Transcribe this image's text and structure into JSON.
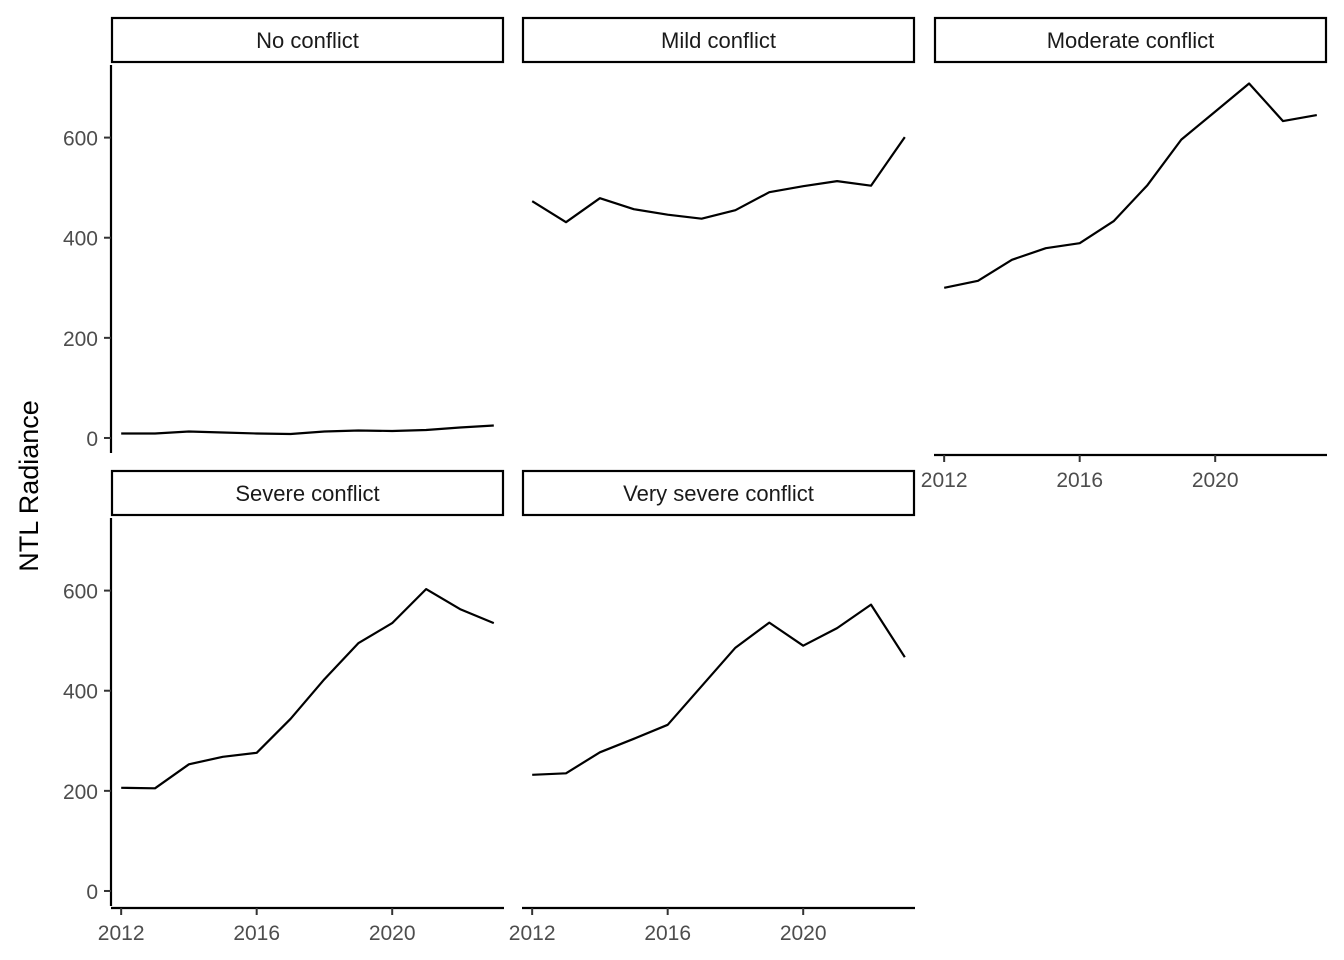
{
  "chart_data": {
    "type": "line",
    "facet_layout": "3 columns, 2 rows",
    "ylabel": "NTL Radiance",
    "xlabel": "",
    "xlim": [
      2011.7,
      2023.3
    ],
    "ylim": [
      -30,
      745
    ],
    "x_ticks": [
      2012,
      2016,
      2020
    ],
    "y_ticks": [
      0,
      200,
      400,
      600
    ],
    "line_color": "#000000",
    "grid": false,
    "panels": [
      {
        "title": "No conflict",
        "x": [
          2012,
          2013,
          2014,
          2015,
          2016,
          2017,
          2018,
          2019,
          2020,
          2021,
          2022,
          2023
        ],
        "values": [
          9,
          9,
          13,
          11,
          9,
          8,
          13,
          15,
          14,
          16,
          21,
          25
        ]
      },
      {
        "title": "Mild conflict",
        "x": [
          2012,
          2013,
          2014,
          2015,
          2016,
          2017,
          2018,
          2019,
          2020,
          2021,
          2022,
          2023
        ],
        "values": [
          473,
          431,
          479,
          457,
          446,
          438,
          455,
          491,
          503,
          513,
          504,
          601
        ]
      },
      {
        "title": "Moderate conflict",
        "x": [
          2012,
          2013,
          2014,
          2015,
          2016,
          2017,
          2018,
          2019,
          2020,
          2021,
          2022,
          2023
        ],
        "values": [
          300,
          314,
          356,
          379,
          389,
          433,
          505,
          596,
          652,
          708,
          633,
          645
        ]
      },
      {
        "title": "Severe conflict",
        "x": [
          2012,
          2013,
          2014,
          2015,
          2016,
          2017,
          2018,
          2019,
          2020,
          2021,
          2022,
          2023
        ],
        "values": [
          206,
          205,
          253,
          268,
          276,
          344,
          423,
          495,
          535,
          603,
          563,
          535
        ]
      },
      {
        "title": "Very severe conflict",
        "x": [
          2012,
          2013,
          2014,
          2015,
          2016,
          2017,
          2018,
          2019,
          2020,
          2021,
          2022,
          2023
        ],
        "values": [
          232,
          235,
          277,
          304,
          332,
          409,
          486,
          536,
          490,
          525,
          572,
          467
        ]
      }
    ]
  }
}
